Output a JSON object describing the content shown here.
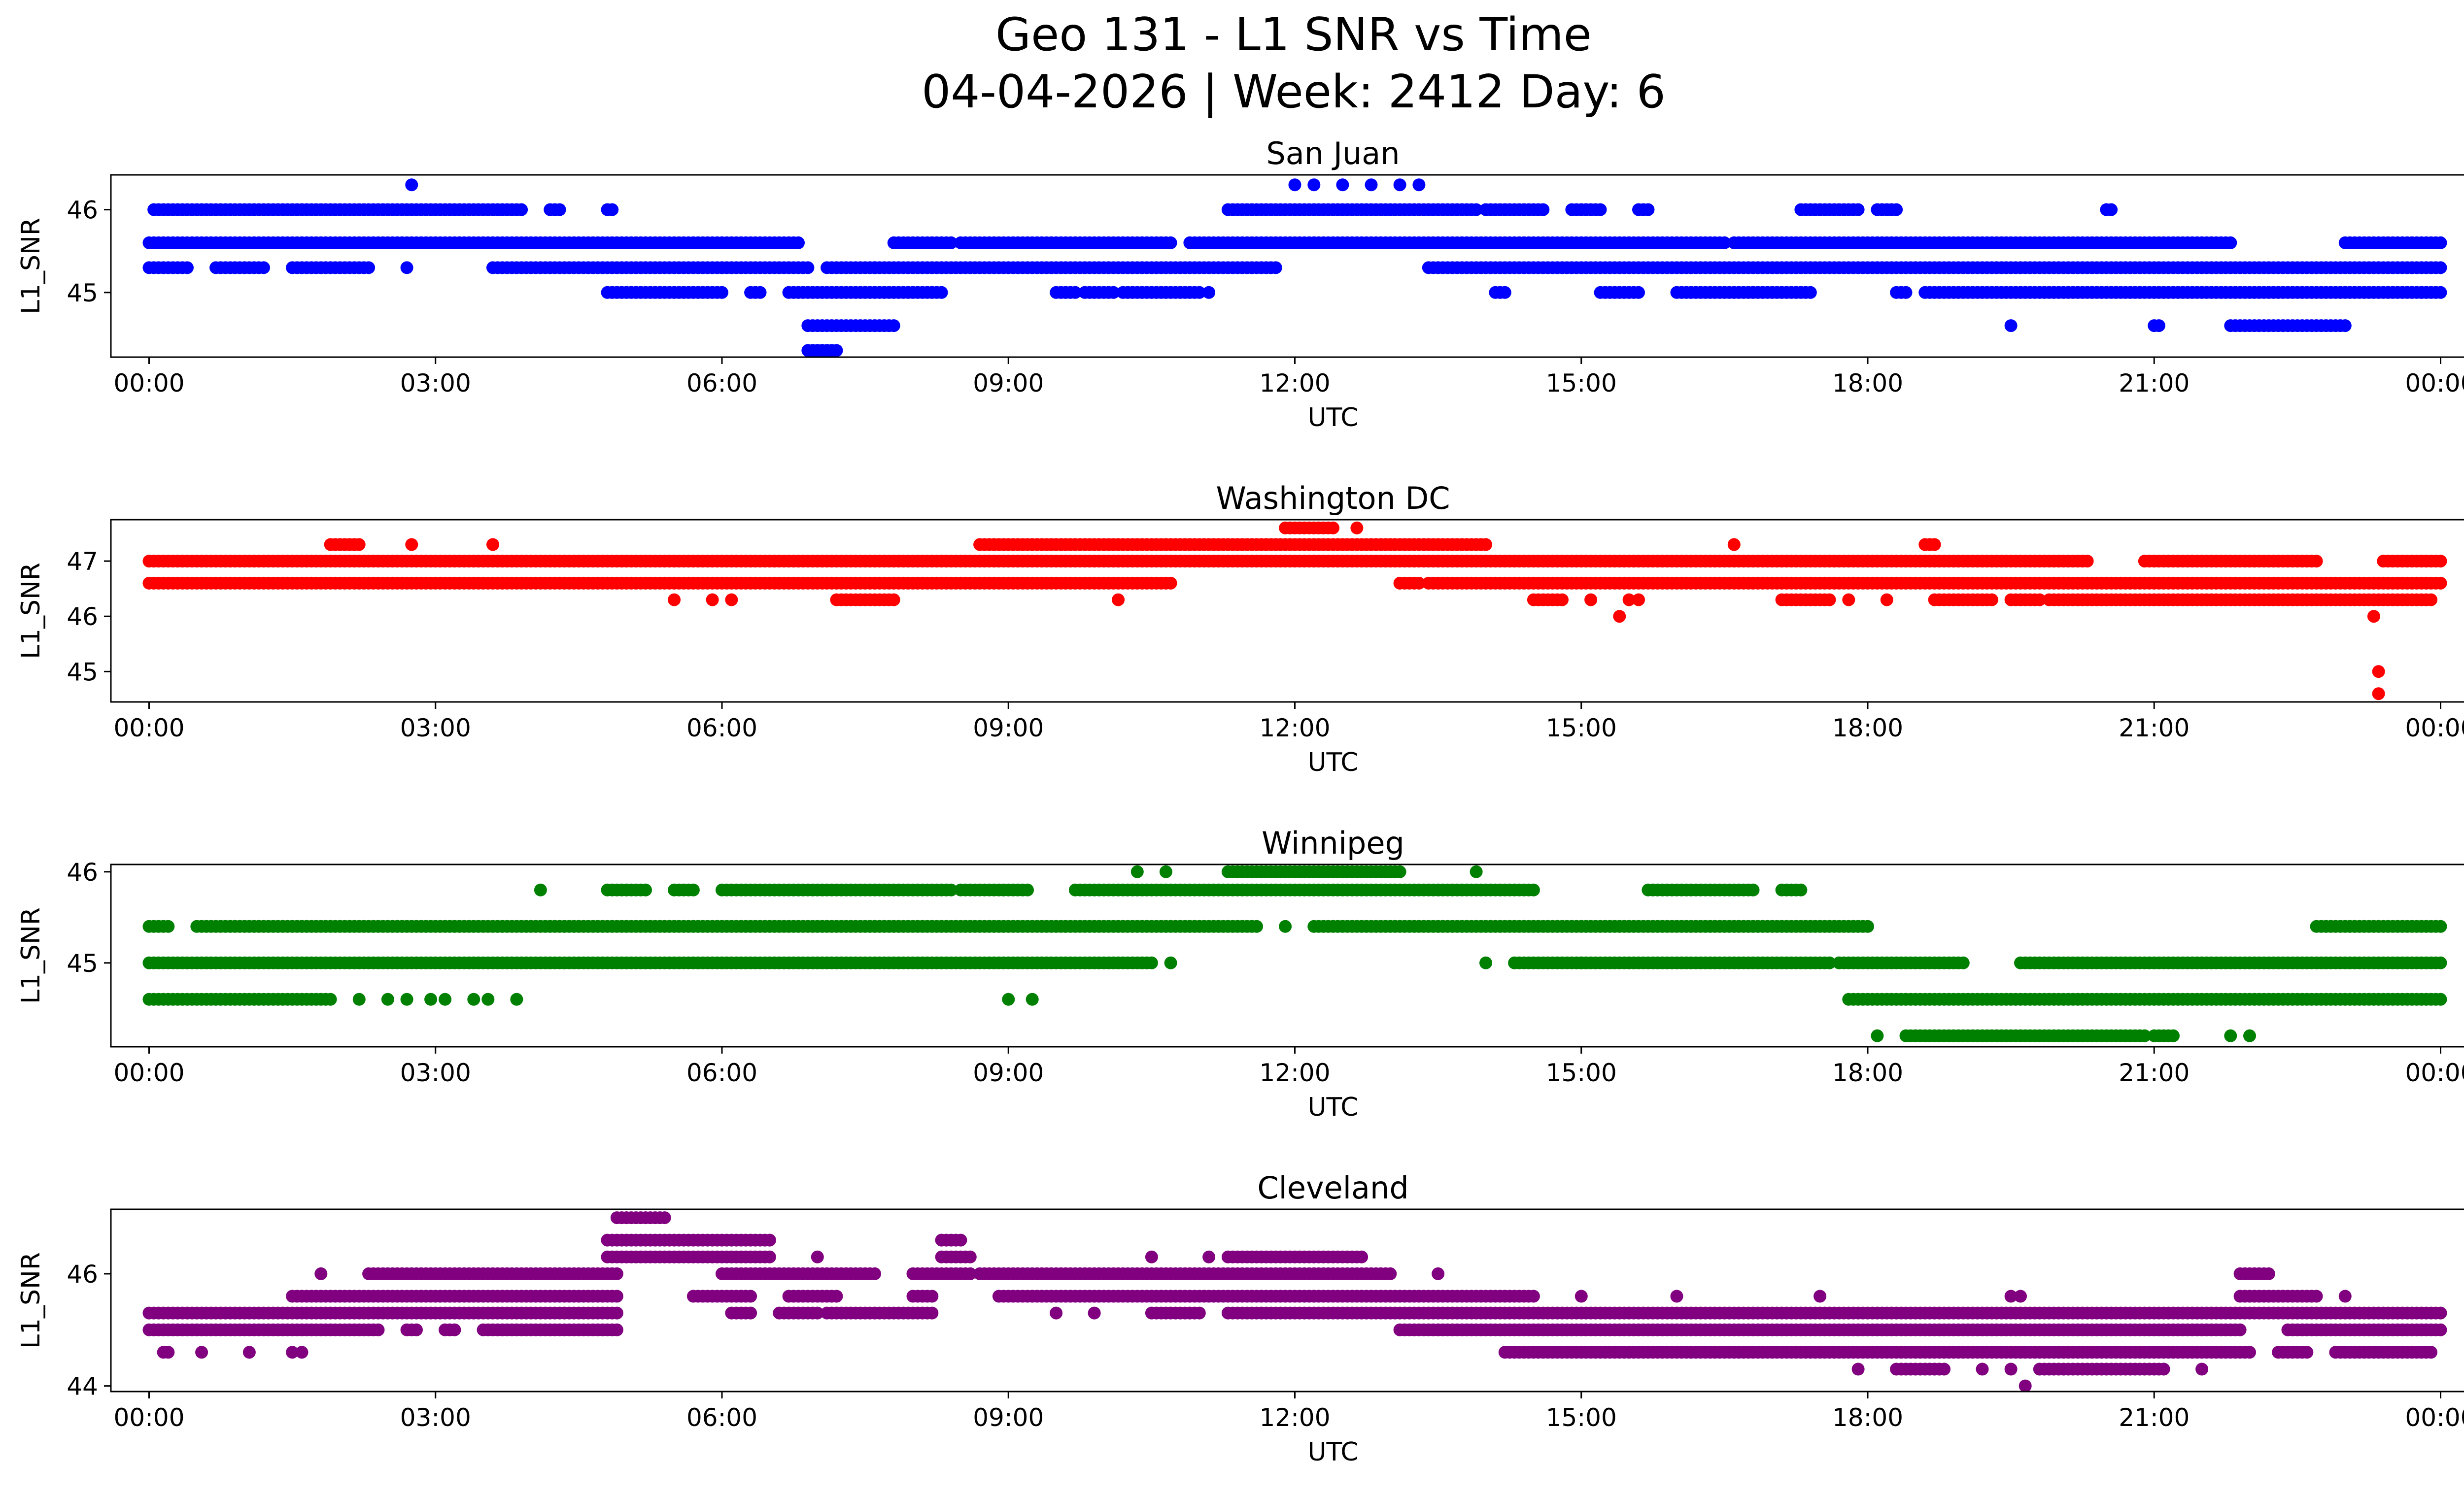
{
  "figure": {
    "title_line1": "Geo 131 - L1 SNR vs Time",
    "title_line2": "04-04-2026 | Week: 2412 Day: 6"
  },
  "x_axis": {
    "label": "UTC",
    "range_hours": [
      -0.4,
      25.2
    ],
    "ticks": [
      {
        "hour": 0,
        "label": "00:00"
      },
      {
        "hour": 3,
        "label": "03:00"
      },
      {
        "hour": 6,
        "label": "06:00"
      },
      {
        "hour": 9,
        "label": "09:00"
      },
      {
        "hour": 12,
        "label": "12:00"
      },
      {
        "hour": 15,
        "label": "15:00"
      },
      {
        "hour": 18,
        "label": "18:00"
      },
      {
        "hour": 21,
        "label": "21:00"
      },
      {
        "hour": 24,
        "label": "00:00"
      }
    ]
  },
  "chart_data": [
    {
      "type": "scatter",
      "title": "San Juan",
      "xlabel": "UTC",
      "ylabel": "L1_SNR",
      "color": "#0000ff",
      "ylim": [
        44.22,
        46.42
      ],
      "yticks": [
        {
          "v": 45,
          "label": "45"
        },
        {
          "v": 46,
          "label": "46"
        }
      ],
      "bands": [
        {
          "y": 46.0,
          "segments": [
            [
              0.05,
              3.9
            ],
            [
              4.2,
              4.3
            ],
            [
              4.8,
              4.85
            ],
            [
              11.3,
              13.9
            ],
            [
              14.0,
              14.6
            ],
            [
              14.9,
              15.2
            ],
            [
              15.6,
              15.7
            ],
            [
              17.3,
              17.9
            ],
            [
              18.1,
              18.3
            ],
            [
              20.5,
              20.55
            ]
          ]
        },
        {
          "y": 45.6,
          "segments": [
            [
              0.0,
              6.8
            ],
            [
              7.8,
              8.4
            ],
            [
              8.5,
              10.7
            ],
            [
              10.9,
              16.5
            ],
            [
              16.6,
              21.8
            ],
            [
              23.0,
              24.0
            ]
          ]
        },
        {
          "y": 45.3,
          "segments": [
            [
              0.0,
              0.4
            ],
            [
              0.7,
              1.2
            ],
            [
              1.5,
              2.3
            ],
            [
              3.6,
              6.9
            ],
            [
              7.1,
              7.6
            ],
            [
              7.6,
              11.8
            ],
            [
              13.4,
              24.0
            ]
          ]
        },
        {
          "y": 45.0,
          "segments": [
            [
              4.8,
              6.0
            ],
            [
              6.3,
              6.4
            ],
            [
              6.7,
              8.3
            ],
            [
              9.5,
              9.7
            ],
            [
              9.8,
              10.1
            ],
            [
              10.2,
              11.0
            ],
            [
              14.1,
              14.2
            ],
            [
              15.2,
              15.6
            ],
            [
              16.0,
              17.4
            ],
            [
              18.3,
              18.4
            ],
            [
              18.6,
              24.0
            ]
          ]
        },
        {
          "y": 44.6,
          "segments": [
            [
              6.9,
              7.8
            ],
            [
              21.0,
              21.05
            ],
            [
              21.8,
              23.0
            ]
          ]
        },
        {
          "y": 44.3,
          "segments": [
            [
              6.9,
              7.2
            ]
          ]
        }
      ],
      "points": [
        {
          "x": 2.75,
          "y": 46.3
        },
        {
          "x": 12.0,
          "y": 46.3
        },
        {
          "x": 12.2,
          "y": 46.3
        },
        {
          "x": 12.5,
          "y": 46.3
        },
        {
          "x": 12.8,
          "y": 46.3
        },
        {
          "x": 13.1,
          "y": 46.3
        },
        {
          "x": 13.3,
          "y": 46.3
        },
        {
          "x": 2.7,
          "y": 45.3
        },
        {
          "x": 11.1,
          "y": 45.0
        },
        {
          "x": 19.5,
          "y": 44.6
        },
        {
          "x": 23.8,
          "y": 45.0
        }
      ]
    },
    {
      "type": "scatter",
      "title": "Washington DC",
      "xlabel": "UTC",
      "ylabel": "L1_SNR",
      "color": "#ff0000",
      "ylim": [
        44.45,
        47.75
      ],
      "yticks": [
        {
          "v": 45,
          "label": "45"
        },
        {
          "v": 46,
          "label": "46"
        },
        {
          "v": 47,
          "label": "47"
        }
      ],
      "bands": [
        {
          "y": 47.0,
          "segments": [
            [
              0.0,
              20.3
            ],
            [
              20.9,
              22.7
            ],
            [
              23.4,
              24.0
            ]
          ]
        },
        {
          "y": 46.6,
          "segments": [
            [
              0.0,
              10.7
            ],
            [
              13.1,
              13.3
            ],
            [
              13.4,
              24.0
            ]
          ]
        },
        {
          "y": 46.3,
          "segments": [
            [
              7.2,
              7.8
            ],
            [
              14.5,
              14.8
            ],
            [
              17.1,
              17.6
            ],
            [
              18.7,
              19.3
            ],
            [
              19.5,
              19.8
            ],
            [
              19.9,
              23.9
            ]
          ]
        },
        {
          "y": 47.3,
          "segments": [
            [
              1.9,
              2.2
            ],
            [
              8.7,
              14.0
            ],
            [
              18.6,
              18.7
            ]
          ]
        },
        {
          "y": 47.6,
          "segments": [
            [
              11.9,
              12.4
            ]
          ]
        }
      ],
      "points": [
        {
          "x": 2.75,
          "y": 47.3
        },
        {
          "x": 3.6,
          "y": 47.3
        },
        {
          "x": 12.65,
          "y": 47.6
        },
        {
          "x": 16.6,
          "y": 47.3
        },
        {
          "x": 5.5,
          "y": 46.3
        },
        {
          "x": 5.9,
          "y": 46.3
        },
        {
          "x": 6.1,
          "y": 46.3
        },
        {
          "x": 10.15,
          "y": 46.3
        },
        {
          "x": 15.1,
          "y": 46.3
        },
        {
          "x": 15.5,
          "y": 46.3
        },
        {
          "x": 15.6,
          "y": 46.3
        },
        {
          "x": 15.4,
          "y": 46.0
        },
        {
          "x": 17.8,
          "y": 46.3
        },
        {
          "x": 18.2,
          "y": 46.3
        },
        {
          "x": 23.3,
          "y": 46.0
        },
        {
          "x": 23.35,
          "y": 45.0
        },
        {
          "x": 23.35,
          "y": 44.6
        }
      ]
    },
    {
      "type": "scatter",
      "title": "Winnipeg",
      "xlabel": "UTC",
      "ylabel": "L1_SNR",
      "color": "#008000",
      "ylim": [
        44.08,
        46.08
      ],
      "yticks": [
        {
          "v": 45,
          "label": "45"
        },
        {
          "v": 46,
          "label": "46"
        }
      ],
      "bands": [
        {
          "y": 45.0,
          "segments": [
            [
              0.0,
              10.5
            ],
            [
              14.3,
              15.0
            ],
            [
              15.0,
              17.6
            ],
            [
              17.7,
              19.0
            ],
            [
              19.6,
              24.0
            ]
          ]
        },
        {
          "y": 45.4,
          "segments": [
            [
              0.0,
              0.2
            ],
            [
              0.5,
              11.6
            ],
            [
              12.2,
              18.0
            ],
            [
              22.7,
              24.0
            ]
          ]
        },
        {
          "y": 44.6,
          "segments": [
            [
              0.0,
              1.9
            ],
            [
              17.8,
              24.0
            ]
          ]
        },
        {
          "y": 45.8,
          "segments": [
            [
              4.8,
              5.2
            ],
            [
              5.5,
              5.7
            ],
            [
              6.0,
              8.4
            ],
            [
              8.5,
              9.2
            ],
            [
              9.7,
              14.5
            ],
            [
              15.7,
              16.8
            ],
            [
              17.1,
              17.3
            ]
          ]
        },
        {
          "y": 44.2,
          "segments": [
            [
              18.4,
              20.9
            ],
            [
              21.0,
              21.2
            ]
          ]
        },
        {
          "y": 46.0,
          "segments": [
            [
              11.3,
              13.1
            ]
          ]
        }
      ],
      "points": [
        {
          "x": 2.2,
          "y": 44.6
        },
        {
          "x": 2.5,
          "y": 44.6
        },
        {
          "x": 2.7,
          "y": 44.6
        },
        {
          "x": 2.95,
          "y": 44.6
        },
        {
          "x": 3.1,
          "y": 44.6
        },
        {
          "x": 3.4,
          "y": 44.6
        },
        {
          "x": 3.55,
          "y": 44.6
        },
        {
          "x": 3.85,
          "y": 44.6
        },
        {
          "x": 4.1,
          "y": 45.8
        },
        {
          "x": 9.0,
          "y": 44.6
        },
        {
          "x": 9.25,
          "y": 44.6
        },
        {
          "x": 10.35,
          "y": 46.0
        },
        {
          "x": 10.65,
          "y": 46.0
        },
        {
          "x": 13.9,
          "y": 46.0
        },
        {
          "x": 10.7,
          "y": 45.0
        },
        {
          "x": 11.9,
          "y": 45.4
        },
        {
          "x": 14.0,
          "y": 45.0
        },
        {
          "x": 18.1,
          "y": 44.2
        },
        {
          "x": 21.8,
          "y": 44.2
        },
        {
          "x": 22.0,
          "y": 44.2
        }
      ]
    },
    {
      "type": "scatter",
      "title": "Cleveland",
      "xlabel": "UTC",
      "ylabel": "L1_SNR",
      "color": "#800080",
      "ylim": [
        43.9,
        47.15
      ],
      "yticks": [
        {
          "v": 44,
          "label": "44"
        },
        {
          "v": 46,
          "label": "46"
        }
      ],
      "bands": [
        {
          "y": 45.3,
          "segments": [
            [
              0.0,
              4.9
            ],
            [
              6.1,
              6.3
            ],
            [
              6.6,
              7.0
            ],
            [
              7.1,
              8.2
            ],
            [
              10.5,
              11.0
            ],
            [
              11.3,
              24.0
            ]
          ]
        },
        {
          "y": 45.0,
          "segments": [
            [
              0.0,
              2.4
            ],
            [
              2.7,
              2.8
            ],
            [
              3.1,
              3.2
            ],
            [
              3.5,
              4.9
            ],
            [
              13.1,
              21.9
            ],
            [
              22.4,
              24.0
            ]
          ]
        },
        {
          "y": 44.6,
          "segments": [
            [
              14.2,
              22.0
            ],
            [
              22.3,
              22.6
            ],
            [
              22.9,
              23.9
            ]
          ]
        },
        {
          "y": 45.6,
          "segments": [
            [
              1.5,
              4.9
            ],
            [
              5.7,
              6.3
            ],
            [
              6.7,
              7.2
            ],
            [
              8.0,
              8.2
            ],
            [
              8.9,
              14.5
            ],
            [
              21.9,
              22.7
            ]
          ]
        },
        {
          "y": 46.0,
          "segments": [
            [
              2.3,
              4.9
            ],
            [
              6.0,
              7.6
            ],
            [
              8.0,
              8.6
            ],
            [
              8.7,
              13.0
            ],
            [
              21.9,
              22.2
            ]
          ]
        },
        {
          "y": 46.3,
          "segments": [
            [
              4.8,
              6.5
            ],
            [
              8.3,
              8.6
            ],
            [
              11.3,
              12.7
            ]
          ]
        },
        {
          "y": 46.6,
          "segments": [
            [
              4.8,
              6.5
            ],
            [
              8.3,
              8.5
            ]
          ]
        },
        {
          "y": 47.0,
          "segments": [
            [
              4.9,
              5.4
            ]
          ]
        },
        {
          "y": 44.3,
          "segments": [
            [
              18.3,
              18.8
            ],
            [
              19.8,
              21.1
            ]
          ]
        }
      ],
      "points": [
        {
          "x": 0.15,
          "y": 44.6
        },
        {
          "x": 0.2,
          "y": 44.6
        },
        {
          "x": 0.55,
          "y": 44.6
        },
        {
          "x": 1.05,
          "y": 44.6
        },
        {
          "x": 1.5,
          "y": 44.6
        },
        {
          "x": 1.6,
          "y": 44.6
        },
        {
          "x": 1.8,
          "y": 46.0
        },
        {
          "x": 7.0,
          "y": 46.3
        },
        {
          "x": 9.5,
          "y": 45.3
        },
        {
          "x": 9.9,
          "y": 45.3
        },
        {
          "x": 10.5,
          "y": 46.3
        },
        {
          "x": 11.1,
          "y": 46.3
        },
        {
          "x": 13.5,
          "y": 46.0
        },
        {
          "x": 15.0,
          "y": 45.6
        },
        {
          "x": 16.0,
          "y": 45.6
        },
        {
          "x": 17.5,
          "y": 45.6
        },
        {
          "x": 17.9,
          "y": 44.3
        },
        {
          "x": 19.2,
          "y": 44.3
        },
        {
          "x": 19.5,
          "y": 44.3
        },
        {
          "x": 19.5,
          "y": 45.6
        },
        {
          "x": 19.6,
          "y": 45.6
        },
        {
          "x": 19.65,
          "y": 44.0
        },
        {
          "x": 21.5,
          "y": 44.3
        },
        {
          "x": 23.0,
          "y": 45.6
        }
      ]
    }
  ]
}
